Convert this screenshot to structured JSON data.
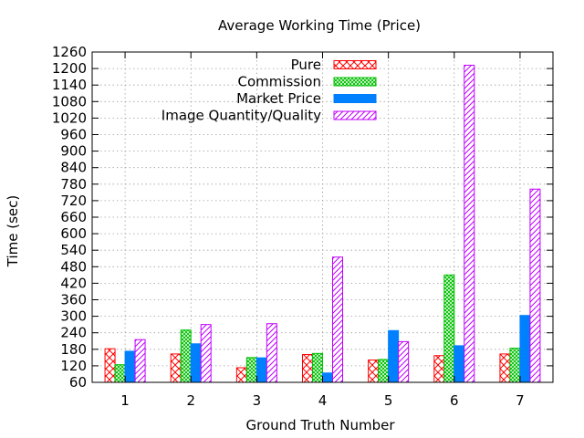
{
  "chart_data": {
    "type": "bar",
    "title": "Average Working Time (Price)",
    "xlabel": "Ground Truth Number",
    "ylabel": "Time (sec)",
    "categories": [
      "1",
      "2",
      "3",
      "4",
      "5",
      "6",
      "7"
    ],
    "ylim": [
      60,
      1260
    ],
    "yticks": [
      60,
      120,
      180,
      240,
      300,
      360,
      420,
      480,
      540,
      600,
      660,
      720,
      780,
      840,
      900,
      960,
      1020,
      1080,
      1140,
      1200,
      1260
    ],
    "grid": true,
    "legend_position": "top-right",
    "series": [
      {
        "name": "Pure",
        "color": "#ff0000",
        "pattern": "crosshatch",
        "values": [
          182,
          163,
          113,
          161,
          141,
          157,
          163
        ]
      },
      {
        "name": "Commission",
        "color": "#00c000",
        "pattern": "fine-crosshatch",
        "values": [
          124,
          250,
          150,
          165,
          143,
          450,
          184
        ]
      },
      {
        "name": "Market Price",
        "color": "#0080ff",
        "pattern": "solid",
        "values": [
          173,
          200,
          149,
          94,
          248,
          193,
          303
        ]
      },
      {
        "name": "Image Quantity/Quality",
        "color": "#c000ff",
        "pattern": "diagonal",
        "values": [
          215,
          270,
          273,
          515,
          208,
          1212,
          762
        ]
      }
    ]
  }
}
